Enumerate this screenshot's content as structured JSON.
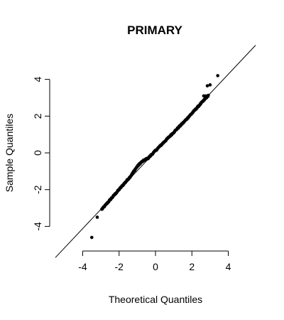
{
  "chart_data": {
    "type": "scatter",
    "title": "PRIMARY",
    "xlabel": "Theoretical Quantiles",
    "ylabel": "Sample Quantiles",
    "xlim": [
      -5.5,
      5.5
    ],
    "ylim": [
      -5.3,
      5.3
    ],
    "x_ticks": [
      "-4",
      "-2",
      "0",
      "2",
      "4"
    ],
    "y_ticks": [
      "-4",
      "-2",
      "0",
      "2",
      "4"
    ],
    "x_tick_values": [
      -4,
      -2,
      0,
      2,
      4
    ],
    "y_tick_values": [
      -4,
      -2,
      0,
      2,
      4
    ],
    "reference_line": {
      "intercept": 0.08,
      "slope": 1.05
    },
    "point_color": "#000000",
    "grid": false,
    "outliers": [
      [
        -3.5,
        -4.6
      ],
      [
        -3.2,
        -3.5
      ],
      [
        3.0,
        3.7
      ],
      [
        2.85,
        3.65
      ],
      [
        2.65,
        3.1
      ],
      [
        2.75,
        3.1
      ],
      [
        3.42,
        4.2
      ]
    ]
  }
}
